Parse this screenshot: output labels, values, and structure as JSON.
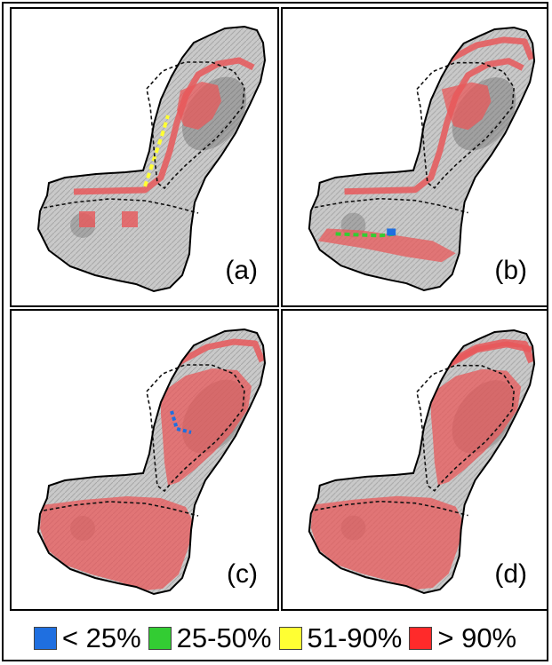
{
  "panels": [
    {
      "id": "a",
      "label": "(a)",
      "classes": [
        "yellow",
        "red"
      ]
    },
    {
      "id": "b",
      "label": "(b)",
      "classes": [
        "green",
        "blue",
        "red"
      ]
    },
    {
      "id": "c",
      "label": "(c)",
      "classes": [
        "blue",
        "red"
      ]
    },
    {
      "id": "d",
      "label": "(d)",
      "classes": [
        "red"
      ]
    }
  ],
  "legend": [
    {
      "label": "< 25%",
      "color": "#1f6fe0"
    },
    {
      "label": "25-50%",
      "color": "#33cc33"
    },
    {
      "label": "51-90%",
      "color": "#ffff33"
    },
    {
      "label": "> 90%",
      "color": "#ff2a2a"
    }
  ],
  "colors": {
    "island_fill": "#c9c9c9",
    "overlay_red": "#e8585a",
    "boundary": "#000000"
  }
}
